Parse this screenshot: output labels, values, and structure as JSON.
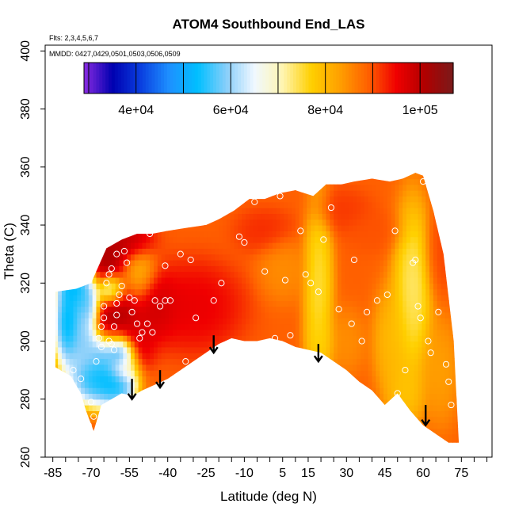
{
  "chart_data": {
    "type": "heatmap",
    "title": "ATOM4 Southbound End_LAS",
    "flights_note": "Flts: 2,3,4,5,6,7",
    "dates_note": "MMDD: 0427,0429,0501,0503,0506,0509",
    "xlabel": "Latitude (deg N)",
    "ylabel": "Theta (C)",
    "xlim": [
      -88,
      87
    ],
    "ylim": [
      260,
      402
    ],
    "x_ticks": [
      -85,
      -70,
      -55,
      -40,
      -25,
      -10,
      5,
      15,
      30,
      45,
      60,
      75
    ],
    "x_tick_labels": [
      "-85",
      "-70",
      "-55",
      "-40",
      "-25",
      "-10",
      "5",
      "15",
      "30",
      "45",
      "60",
      "75"
    ],
    "x_minor_step": 5,
    "y_ticks": [
      260,
      280,
      300,
      320,
      340,
      360,
      380,
      400
    ],
    "y_tick_labels": [
      "260",
      "280",
      "300",
      "320",
      "340",
      "360",
      "380",
      "400"
    ],
    "colorbar": {
      "range": [
        29000,
        107000
      ],
      "ticks": [
        40000,
        60000,
        80000,
        100000
      ],
      "tick_labels": [
        "4e+04",
        "6e+04",
        "8e+04",
        "1e+05"
      ],
      "colors": [
        "#8a2be2",
        "#0000b0",
        "#0a3fe0",
        "#1e90ff",
        "#00bfff",
        "#87cefa",
        "#f0f8ff",
        "#fff5b0",
        "#ffd000",
        "#ffa000",
        "#ff6000",
        "#f00000",
        "#b00000",
        "#7a1a1a"
      ]
    },
    "boundary": {
      "top": [
        [
          -84,
          317
        ],
        [
          -76,
          318
        ],
        [
          -70,
          320
        ],
        [
          -67,
          326
        ],
        [
          -64,
          332
        ],
        [
          -58,
          335
        ],
        [
          -52,
          337
        ],
        [
          -46,
          337
        ],
        [
          -40,
          338
        ],
        [
          -33,
          339
        ],
        [
          -25,
          340
        ],
        [
          -20,
          342
        ],
        [
          -14,
          345
        ],
        [
          -8,
          349
        ],
        [
          -2,
          349
        ],
        [
          4,
          351
        ],
        [
          10,
          352
        ],
        [
          17,
          350
        ],
        [
          22,
          354
        ],
        [
          28,
          354
        ],
        [
          33,
          355
        ],
        [
          40,
          356
        ],
        [
          47,
          355
        ],
        [
          52,
          356
        ],
        [
          57,
          358
        ],
        [
          60,
          357
        ],
        [
          64,
          345
        ],
        [
          68,
          330
        ],
        [
          72,
          300
        ],
        [
          73,
          282
        ],
        [
          74,
          265
        ]
      ],
      "bottom": [
        [
          -84,
          291
        ],
        [
          -78,
          288
        ],
        [
          -74,
          282
        ],
        [
          -72,
          276
        ],
        [
          -69,
          269
        ],
        [
          -66,
          278
        ],
        [
          -62,
          280
        ],
        [
          -58,
          282
        ],
        [
          -54,
          281
        ],
        [
          -50,
          283
        ],
        [
          -45,
          285
        ],
        [
          -40,
          287
        ],
        [
          -35,
          290
        ],
        [
          -30,
          293
        ],
        [
          -25,
          296
        ],
        [
          -20,
          299
        ],
        [
          -15,
          301
        ],
        [
          -10,
          300
        ],
        [
          -5,
          300
        ],
        [
          0,
          301
        ],
        [
          5,
          300
        ],
        [
          10,
          298
        ],
        [
          15,
          297
        ],
        [
          20,
          296
        ],
        [
          25,
          293
        ],
        [
          30,
          290
        ],
        [
          35,
          286
        ],
        [
          40,
          283
        ],
        [
          45,
          278
        ],
        [
          50,
          282
        ],
        [
          55,
          276
        ],
        [
          60,
          271
        ],
        [
          65,
          268
        ],
        [
          70,
          265
        ],
        [
          74,
          265
        ]
      ]
    },
    "field": {
      "background_value": 89000,
      "features": [
        {
          "lat": -64,
          "theta": 328,
          "value": 104000,
          "sx": 5,
          "sy": 6
        },
        {
          "lat": -58,
          "theta": 312,
          "value": 103000,
          "sx": 4,
          "sy": 6
        },
        {
          "lat": -63,
          "theta": 306,
          "value": 102000,
          "sx": 3,
          "sy": 5
        },
        {
          "lat": -45,
          "theta": 312,
          "value": 100000,
          "sx": 5,
          "sy": 6
        },
        {
          "lat": -52,
          "theta": 300,
          "value": 98000,
          "sx": 4,
          "sy": 5
        },
        {
          "lat": -30,
          "theta": 312,
          "value": 97000,
          "sx": 10,
          "sy": 8
        },
        {
          "lat": -58,
          "theta": 335,
          "value": 101000,
          "sx": 6,
          "sy": 4
        },
        {
          "lat": -76,
          "theta": 320,
          "value": 45000,
          "sx": 4,
          "sy": 5
        },
        {
          "lat": -72,
          "theta": 313,
          "value": 52000,
          "sx": 3,
          "sy": 6
        },
        {
          "lat": -79,
          "theta": 306,
          "value": 44000,
          "sx": 3,
          "sy": 8
        },
        {
          "lat": -73,
          "theta": 299,
          "value": 55000,
          "sx": 3,
          "sy": 5
        },
        {
          "lat": -64,
          "theta": 297,
          "value": 50000,
          "sx": 4,
          "sy": 4
        },
        {
          "lat": -58,
          "theta": 296,
          "value": 45000,
          "sx": 3,
          "sy": 3
        },
        {
          "lat": -68,
          "theta": 287,
          "value": 46000,
          "sx": 6,
          "sy": 5
        },
        {
          "lat": -60,
          "theta": 285,
          "value": 48000,
          "sx": 4,
          "sy": 4
        },
        {
          "lat": -62,
          "theta": 318,
          "value": 52000,
          "sx": 3,
          "sy": 3
        },
        {
          "lat": -52,
          "theta": 322,
          "value": 78000,
          "sx": 4,
          "sy": 5
        },
        {
          "lat": -57,
          "theta": 291,
          "value": 70000,
          "sx": 3,
          "sy": 3
        },
        {
          "lat": 19,
          "theta": 320,
          "value": 72000,
          "sx": 3,
          "sy": 16
        },
        {
          "lat": 20,
          "theta": 300,
          "value": 76000,
          "sx": 3,
          "sy": 5
        },
        {
          "lat": 56,
          "theta": 318,
          "value": 70000,
          "sx": 4,
          "sy": 16
        },
        {
          "lat": 48,
          "theta": 300,
          "value": 78000,
          "sx": 4,
          "sy": 10
        },
        {
          "lat": 53,
          "theta": 282,
          "value": 77000,
          "sx": 4,
          "sy": 6
        },
        {
          "lat": 5,
          "theta": 325,
          "value": 84000,
          "sx": 5,
          "sy": 6
        },
        {
          "lat": 30,
          "theta": 300,
          "value": 84000,
          "sx": 4,
          "sy": 6
        },
        {
          "lat": 67,
          "theta": 290,
          "value": 82000,
          "sx": 4,
          "sy": 10
        },
        {
          "lat": 66,
          "theta": 330,
          "value": 91000,
          "sx": 3,
          "sy": 8
        },
        {
          "lat": -2,
          "theta": 338,
          "value": 93000,
          "sx": 6,
          "sy": 4
        },
        {
          "lat": 40,
          "theta": 338,
          "value": 90000,
          "sx": 6,
          "sy": 4
        },
        {
          "lat": 28,
          "theta": 345,
          "value": 92000,
          "sx": 6,
          "sy": 4
        }
      ]
    },
    "arrows": [
      {
        "lat": -54,
        "theta_top": 287,
        "theta_tip": 280
      },
      {
        "lat": -43,
        "theta_top": 290,
        "theta_tip": 284
      },
      {
        "lat": -22,
        "theta_top": 302,
        "theta_tip": 296
      },
      {
        "lat": 19,
        "theta_top": 299,
        "theta_tip": 293
      },
      {
        "lat": 61,
        "theta_top": 278,
        "theta_tip": 271
      }
    ],
    "points": [
      {
        "lat": -78,
        "theta": 286
      },
      {
        "lat": -77,
        "theta": 290
      },
      {
        "lat": -74,
        "theta": 287
      },
      {
        "lat": -71,
        "theta": 271
      },
      {
        "lat": -69,
        "theta": 274
      },
      {
        "lat": -70,
        "theta": 279
      },
      {
        "lat": -68,
        "theta": 293
      },
      {
        "lat": -66,
        "theta": 298
      },
      {
        "lat": -67,
        "theta": 301
      },
      {
        "lat": -66,
        "theta": 305
      },
      {
        "lat": -65,
        "theta": 308
      },
      {
        "lat": -65,
        "theta": 312
      },
      {
        "lat": -63,
        "theta": 300
      },
      {
        "lat": -62,
        "theta": 299
      },
      {
        "lat": -61,
        "theta": 297
      },
      {
        "lat": -61,
        "theta": 305
      },
      {
        "lat": -60,
        "theta": 309
      },
      {
        "lat": -60,
        "theta": 313
      },
      {
        "lat": -59,
        "theta": 316
      },
      {
        "lat": -58,
        "theta": 319
      },
      {
        "lat": -64,
        "theta": 320
      },
      {
        "lat": -63,
        "theta": 323
      },
      {
        "lat": -62,
        "theta": 325
      },
      {
        "lat": -60,
        "theta": 330
      },
      {
        "lat": -57,
        "theta": 331
      },
      {
        "lat": -56,
        "theta": 327
      },
      {
        "lat": -55,
        "theta": 315
      },
      {
        "lat": -53,
        "theta": 314
      },
      {
        "lat": -54,
        "theta": 310
      },
      {
        "lat": -52,
        "theta": 306
      },
      {
        "lat": -51,
        "theta": 301
      },
      {
        "lat": -50,
        "theta": 303
      },
      {
        "lat": -48,
        "theta": 306
      },
      {
        "lat": -46,
        "theta": 303
      },
      {
        "lat": -45,
        "theta": 314
      },
      {
        "lat": -43,
        "theta": 312
      },
      {
        "lat": -41,
        "theta": 314
      },
      {
        "lat": -39,
        "theta": 314
      },
      {
        "lat": -47,
        "theta": 337
      },
      {
        "lat": -41,
        "theta": 326
      },
      {
        "lat": -35,
        "theta": 330
      },
      {
        "lat": -31,
        "theta": 328
      },
      {
        "lat": -29,
        "theta": 308
      },
      {
        "lat": -33,
        "theta": 293
      },
      {
        "lat": -22,
        "theta": 314
      },
      {
        "lat": -20,
        "theta": 350
      },
      {
        "lat": -19,
        "theta": 320
      },
      {
        "lat": -12,
        "theta": 336
      },
      {
        "lat": -10,
        "theta": 334
      },
      {
        "lat": -6,
        "theta": 348
      },
      {
        "lat": -2,
        "theta": 324
      },
      {
        "lat": 2,
        "theta": 301
      },
      {
        "lat": 4,
        "theta": 350
      },
      {
        "lat": 6,
        "theta": 321
      },
      {
        "lat": 8,
        "theta": 302
      },
      {
        "lat": 12,
        "theta": 338
      },
      {
        "lat": 14,
        "theta": 323
      },
      {
        "lat": 16,
        "theta": 320
      },
      {
        "lat": 19,
        "theta": 317
      },
      {
        "lat": 21,
        "theta": 335
      },
      {
        "lat": 24,
        "theta": 346
      },
      {
        "lat": 27,
        "theta": 311
      },
      {
        "lat": 28,
        "theta": 289
      },
      {
        "lat": 32,
        "theta": 306
      },
      {
        "lat": 33,
        "theta": 328
      },
      {
        "lat": 36,
        "theta": 300
      },
      {
        "lat": 38,
        "theta": 310
      },
      {
        "lat": 42,
        "theta": 314
      },
      {
        "lat": 46,
        "theta": 316
      },
      {
        "lat": 49,
        "theta": 338
      },
      {
        "lat": 50,
        "theta": 282
      },
      {
        "lat": 53,
        "theta": 290
      },
      {
        "lat": 56,
        "theta": 327
      },
      {
        "lat": 57,
        "theta": 328
      },
      {
        "lat": 58,
        "theta": 312
      },
      {
        "lat": 59,
        "theta": 308
      },
      {
        "lat": 60,
        "theta": 355
      },
      {
        "lat": 62,
        "theta": 300
      },
      {
        "lat": 63,
        "theta": 296
      },
      {
        "lat": 66,
        "theta": 310
      },
      {
        "lat": 69,
        "theta": 292
      },
      {
        "lat": 70,
        "theta": 286
      },
      {
        "lat": 71,
        "theta": 278
      }
    ]
  }
}
